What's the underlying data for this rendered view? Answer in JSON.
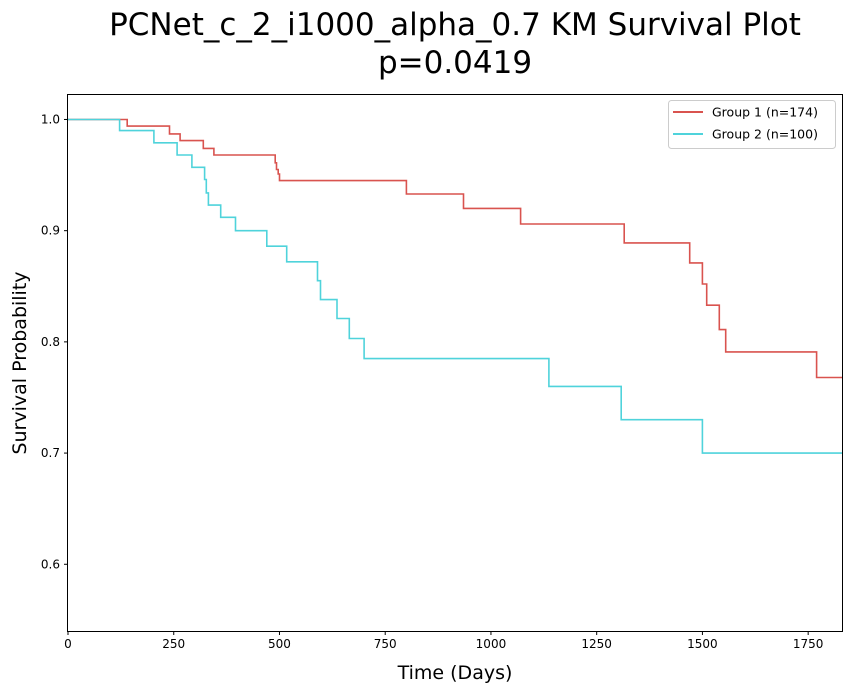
{
  "chart_data": {
    "type": "line",
    "title": "PCNet_c_2_i1000_alpha_0.7 KM Survival Plot",
    "subtitle": "p=0.0419",
    "xlabel": "Time (Days)",
    "ylabel": "Survival Probability",
    "xlim": [
      0,
      1830
    ],
    "ylim": [
      0.54,
      1.022
    ],
    "xticks": [
      "0",
      "250",
      "500",
      "750",
      "1000",
      "1250",
      "1500",
      "1750"
    ],
    "xtick_values": [
      0,
      250,
      500,
      750,
      1000,
      1250,
      1500,
      1750
    ],
    "yticks": [
      "0.6",
      "0.7",
      "0.8",
      "0.9",
      "1.0"
    ],
    "ytick_values": [
      0.6,
      0.7,
      0.8,
      0.9,
      1.0
    ],
    "grid": false,
    "legend_position": "top-right",
    "step": "post",
    "series": [
      {
        "name": "Group 1 (n=174)",
        "color": "#d9534f",
        "x": [
          0,
          135,
          140,
          240,
          265,
          320,
          345,
          490,
          493,
          497,
          500,
          800,
          935,
          1070,
          1315,
          1470,
          1500,
          1510,
          1540,
          1555,
          1770,
          1830
        ],
        "y": [
          1.0,
          1.0,
          0.994,
          0.987,
          0.981,
          0.974,
          0.968,
          0.961,
          0.955,
          0.951,
          0.945,
          0.933,
          0.92,
          0.906,
          0.889,
          0.871,
          0.852,
          0.833,
          0.811,
          0.791,
          0.768,
          0.768
        ]
      },
      {
        "name": "Group 2 (n=100)",
        "color": "#4fd3db",
        "x": [
          0,
          122,
          203,
          258,
          293,
          323,
          327,
          332,
          345,
          361,
          396,
          470,
          517,
          587,
          590,
          597,
          620,
          636,
          665,
          700,
          1137,
          1308,
          1500,
          1830
        ],
        "y": [
          1.0,
          0.99,
          0.979,
          0.968,
          0.957,
          0.946,
          0.934,
          0.923,
          0.923,
          0.912,
          0.9,
          0.886,
          0.872,
          0.872,
          0.855,
          0.838,
          0.838,
          0.821,
          0.803,
          0.785,
          0.76,
          0.73,
          0.7,
          0.7
        ]
      }
    ]
  }
}
